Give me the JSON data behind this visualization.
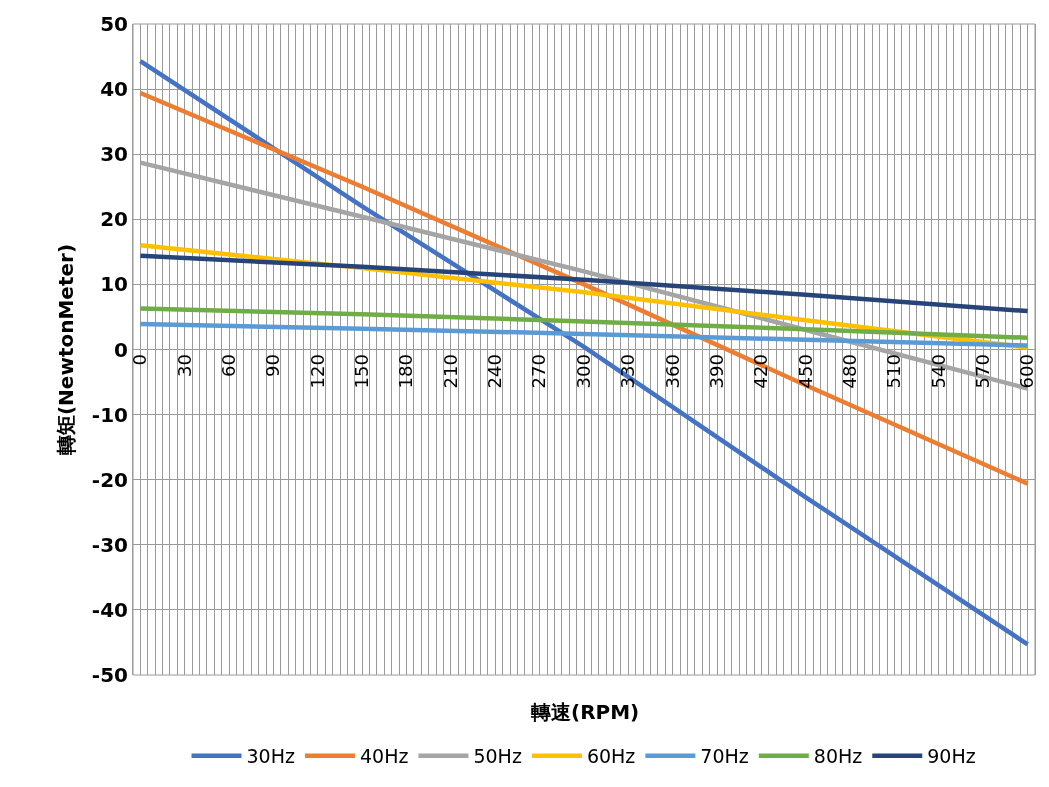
{
  "chart_data": {
    "type": "line",
    "xlabel": "轉速(RPM)",
    "ylabel": "轉矩(NewtonMeter)",
    "xlim": [
      -5,
      605
    ],
    "ylim": [
      -50,
      50
    ],
    "xticks": [
      0,
      {
        "value": 5,
        "label": null
      },
      {
        "value": 10,
        "label": null
      },
      {
        "value": 15,
        "label": null
      },
      {
        "value": 20,
        "label": null
      },
      {
        "value": 25,
        "label": null
      },
      30,
      {
        "value": 35,
        "label": null
      },
      {
        "value": 40,
        "label": null
      },
      {
        "value": 45,
        "label": null
      },
      {
        "value": 50,
        "label": null
      },
      {
        "value": 55,
        "label": null
      },
      60,
      {
        "value": 65,
        "label": null
      },
      {
        "value": 70,
        "label": null
      },
      {
        "value": 75,
        "label": null
      },
      {
        "value": 80,
        "label": null
      },
      {
        "value": 85,
        "label": null
      },
      90,
      {
        "value": 95,
        "label": null
      },
      {
        "value": 100,
        "label": null
      },
      {
        "value": 105,
        "label": null
      },
      {
        "value": 110,
        "label": null
      },
      {
        "value": 115,
        "label": null
      },
      120,
      {
        "value": 125,
        "label": null
      },
      {
        "value": 130,
        "label": null
      },
      {
        "value": 135,
        "label": null
      },
      {
        "value": 140,
        "label": null
      },
      {
        "value": 145,
        "label": null
      },
      150,
      {
        "value": 155,
        "label": null
      },
      {
        "value": 160,
        "label": null
      },
      {
        "value": 165,
        "label": null
      },
      {
        "value": 170,
        "label": null
      },
      {
        "value": 175,
        "label": null
      },
      180,
      {
        "value": 185,
        "label": null
      },
      {
        "value": 190,
        "label": null
      },
      {
        "value": 195,
        "label": null
      },
      {
        "value": 200,
        "label": null
      },
      {
        "value": 205,
        "label": null
      },
      210,
      {
        "value": 215,
        "label": null
      },
      {
        "value": 220,
        "label": null
      },
      {
        "value": 225,
        "label": null
      },
      {
        "value": 230,
        "label": null
      },
      {
        "value": 235,
        "label": null
      },
      240,
      {
        "value": 245,
        "label": null
      },
      {
        "value": 250,
        "label": null
      },
      {
        "value": 255,
        "label": null
      },
      {
        "value": 260,
        "label": null
      },
      {
        "value": 265,
        "label": null
      },
      270,
      {
        "value": 275,
        "label": null
      },
      {
        "value": 280,
        "label": null
      },
      {
        "value": 285,
        "label": null
      },
      {
        "value": 290,
        "label": null
      },
      {
        "value": 295,
        "label": null
      },
      300,
      {
        "value": 305,
        "label": null
      },
      {
        "value": 310,
        "label": null
      },
      {
        "value": 315,
        "label": null
      },
      {
        "value": 320,
        "label": null
      },
      {
        "value": 325,
        "label": null
      },
      330,
      {
        "value": 335,
        "label": null
      },
      {
        "value": 340,
        "label": null
      },
      {
        "value": 345,
        "label": null
      },
      {
        "value": 350,
        "label": null
      },
      {
        "value": 355,
        "label": null
      },
      360,
      {
        "value": 365,
        "label": null
      },
      {
        "value": 370,
        "label": null
      },
      {
        "value": 375,
        "label": null
      },
      {
        "value": 380,
        "label": null
      },
      {
        "value": 385,
        "label": null
      },
      390,
      {
        "value": 395,
        "label": null
      },
      {
        "value": 400,
        "label": null
      },
      {
        "value": 405,
        "label": null
      },
      {
        "value": 410,
        "label": null
      },
      {
        "value": 415,
        "label": null
      },
      420,
      {
        "value": 425,
        "label": null
      },
      {
        "value": 430,
        "label": null
      },
      {
        "value": 435,
        "label": null
      },
      {
        "value": 440,
        "label": null
      },
      {
        "value": 445,
        "label": null
      },
      450,
      {
        "value": 455,
        "label": null
      },
      {
        "value": 460,
        "label": null
      },
      {
        "value": 465,
        "label": null
      },
      {
        "value": 470,
        "label": null
      },
      {
        "value": 475,
        "label": null
      },
      480,
      {
        "value": 485,
        "label": null
      },
      {
        "value": 490,
        "label": null
      },
      {
        "value": 495,
        "label": null
      },
      {
        "value": 500,
        "label": null
      },
      {
        "value": 505,
        "label": null
      },
      510,
      {
        "value": 515,
        "label": null
      },
      {
        "value": 520,
        "label": null
      },
      {
        "value": 525,
        "label": null
      },
      {
        "value": 530,
        "label": null
      },
      {
        "value": 535,
        "label": null
      },
      540,
      {
        "value": 545,
        "label": null
      },
      {
        "value": 550,
        "label": null
      },
      {
        "value": 555,
        "label": null
      },
      {
        "value": 560,
        "label": null
      },
      {
        "value": 565,
        "label": null
      },
      570,
      {
        "value": 575,
        "label": null
      },
      {
        "value": 580,
        "label": null
      },
      {
        "value": 585,
        "label": null
      },
      {
        "value": 590,
        "label": null
      },
      {
        "value": 595,
        "label": null
      },
      600
    ],
    "yticks": [
      -50,
      -40,
      -30,
      -20,
      -10,
      0,
      10,
      20,
      30,
      40,
      50
    ],
    "grid": true,
    "legend": "bottom",
    "marker": "none",
    "line_style": "solid",
    "x": [
      0,
      150,
      300,
      450,
      600
    ],
    "series": [
      {
        "name": "30Hz",
        "color": "#4472c4",
        "values": [
          44.3,
          22,
          0.4,
          -22.7,
          -45.3
        ]
      },
      {
        "name": "40Hz",
        "color": "#ed7d31",
        "values": [
          39.4,
          25,
          10,
          -5.5,
          -20.6
        ]
      },
      {
        "name": "50Hz",
        "color": "#a5a5a5",
        "values": [
          28.7,
          20.4,
          12,
          3,
          -6
        ]
      },
      {
        "name": "60Hz",
        "color": "#ffc000",
        "values": [
          16,
          12.5,
          8.8,
          4.5,
          0.3
        ]
      },
      {
        "name": "70Hz",
        "color": "#5b9bd5",
        "values": [
          3.9,
          3.2,
          2.4,
          1.5,
          0.6
        ]
      },
      {
        "name": "80Hz",
        "color": "#70ad47",
        "values": [
          6.3,
          5.4,
          4.3,
          3.1,
          1.8
        ]
      },
      {
        "name": "90Hz",
        "color": "#264478",
        "values": [
          14.4,
          12.7,
          10.7,
          8.4,
          5.9
        ]
      }
    ]
  }
}
